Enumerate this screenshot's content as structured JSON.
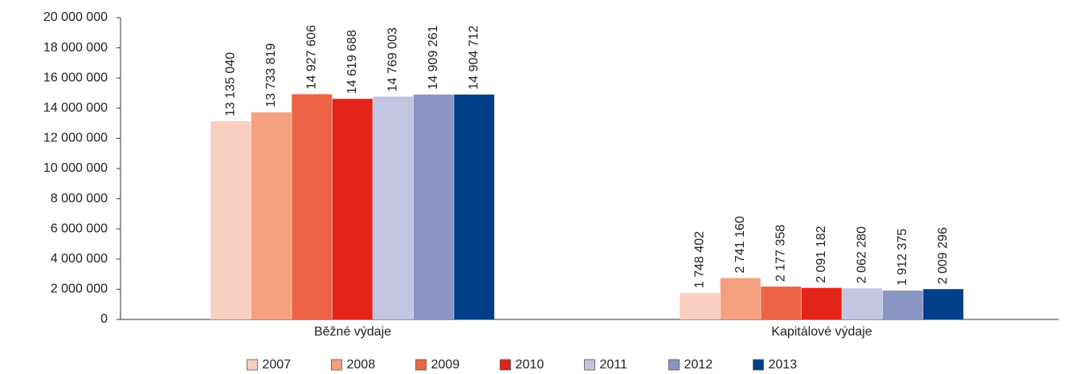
{
  "chart_data": {
    "type": "bar",
    "categories": [
      "Běžné výdaje",
      "Kapitálové výdaje"
    ],
    "series": [
      {
        "name": "2007",
        "color": "#f9cfbf",
        "values": [
          13135040,
          1748402
        ],
        "value_labels": [
          "13 135 040",
          "1 748 402"
        ]
      },
      {
        "name": "2008",
        "color": "#f4a080",
        "values": [
          13733819,
          2741160
        ],
        "value_labels": [
          "13 733 819",
          "2 741 160"
        ]
      },
      {
        "name": "2009",
        "color": "#ec6446",
        "values": [
          14927606,
          2177358
        ],
        "value_labels": [
          "14 927 606",
          "2 177 358"
        ]
      },
      {
        "name": "2010",
        "color": "#e2231a",
        "values": [
          14619688,
          2091182
        ],
        "value_labels": [
          "14 619 688",
          "2 091 182"
        ]
      },
      {
        "name": "2011",
        "color": "#c3c4e2",
        "values": [
          14769003,
          2062280
        ],
        "value_labels": [
          "14 769 003",
          "2 062 280"
        ]
      },
      {
        "name": "2012",
        "color": "#8995c3",
        "values": [
          14909261,
          1912375
        ],
        "value_labels": [
          "14 909 261",
          "1 912 375"
        ]
      },
      {
        "name": "2013",
        "color": "#003f87",
        "values": [
          14904712,
          2009296
        ],
        "value_labels": [
          "14 904 712",
          "2 009 296"
        ]
      }
    ],
    "ylim": [
      0,
      20000000
    ],
    "yticks": [
      0,
      {
        "value": 2000000,
        "label": "2 000 000"
      },
      {
        "value": 4000000,
        "label": "4 000 000"
      },
      {
        "value": 6000000,
        "label": "6 000 000"
      },
      {
        "value": 8000000,
        "label": "8 000 000"
      },
      {
        "value": 10000000,
        "label": "10 000 000"
      },
      {
        "value": 12000000,
        "label": "12 000 000"
      },
      {
        "value": 14000000,
        "label": "14 000 000"
      },
      {
        "value": 16000000,
        "label": "16 000 000"
      },
      {
        "value": 18000000,
        "label": "18 000 000"
      },
      {
        "value": 20000000,
        "label": "20 000 000"
      }
    ],
    "grid": false,
    "legend": "bottom"
  }
}
